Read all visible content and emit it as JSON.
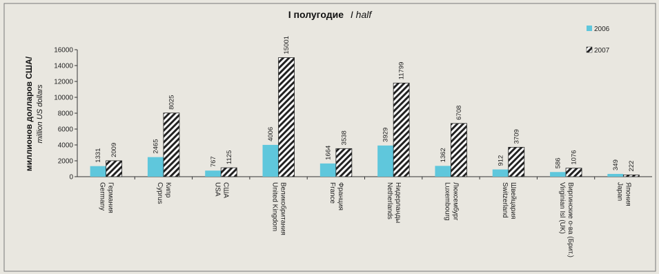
{
  "chart_data": {
    "type": "bar",
    "title": "I полугодие",
    "title_en": "I half",
    "ylabel": "миллионов долларов США/",
    "ylabel_en": "million US dollars",
    "ylim": [
      0,
      16000
    ],
    "yticks": [
      "0",
      "2000",
      "4000",
      "6000",
      "8000",
      "10000",
      "12000",
      "14000",
      "16000"
    ],
    "grid": false,
    "legend_position": "top-right",
    "categories": [
      {
        "ru": "Германия",
        "en": "Germany"
      },
      {
        "ru": "Кипр",
        "en": "Cyprus"
      },
      {
        "ru": "США",
        "en": "USA"
      },
      {
        "ru": "Великобритания",
        "en": "United Kingdom"
      },
      {
        "ru": "Франция",
        "en": "France"
      },
      {
        "ru": "Нидерланды",
        "en": "Netherlands"
      },
      {
        "ru": "Люксембург",
        "en": "Luxembourg"
      },
      {
        "ru": "Швейцария",
        "en": "Switzerland"
      },
      {
        "ru": "Виргинские о-ва (Брит.)",
        "en": "Virginian Isl (UK)"
      },
      {
        "ru": "Япония",
        "en": "Japan"
      }
    ],
    "series": [
      {
        "name": "2006",
        "color": "#5fc7dc",
        "pattern": "solid",
        "values": [
          1331,
          2465,
          767,
          4006,
          1664,
          3929,
          1362,
          912,
          586,
          349
        ],
        "labels": [
          "1331",
          "2465",
          "767",
          "4006",
          "1664",
          "3929",
          "1362",
          "912",
          "586",
          "349"
        ]
      },
      {
        "name": "2007",
        "color": "#222222",
        "pattern": "hatch",
        "values": [
          2009,
          8025,
          1125,
          15001,
          3538,
          11799,
          6708,
          3709,
          1076,
          222
        ],
        "labels": [
          "2009",
          "8025",
          "1125",
          "15001",
          "3538",
          "11799",
          "6708",
          "3709",
          "1076",
          "222"
        ]
      }
    ]
  }
}
